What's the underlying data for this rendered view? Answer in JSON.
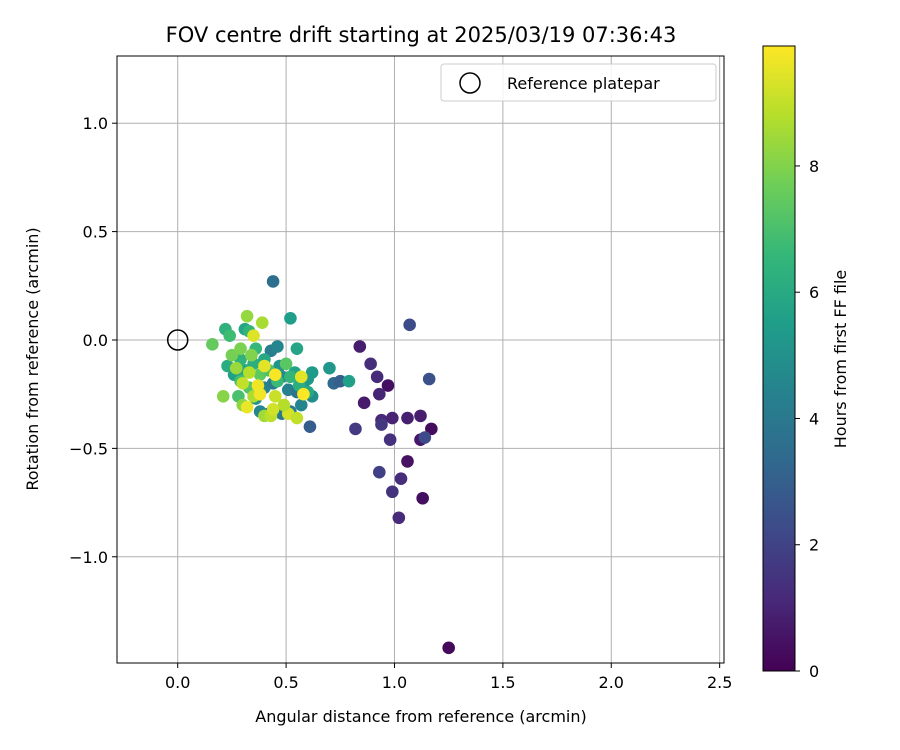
{
  "chart_data": {
    "type": "scatter",
    "title": "FOV centre drift starting at 2025/03/19 07:36:43",
    "xlabel": "Angular distance from reference (arcmin)",
    "ylabel": "Rotation from reference (arcmin)",
    "xlim": [
      -0.28,
      2.52
    ],
    "ylim": [
      -1.49,
      1.31
    ],
    "xticks": [
      0.0,
      0.5,
      1.0,
      1.5,
      2.0,
      2.5
    ],
    "xtick_labels": [
      "0.0",
      "0.5",
      "1.0",
      "1.5",
      "2.0",
      "2.5"
    ],
    "yticks": [
      1.0,
      0.5,
      0.0,
      -0.5,
      -1.0
    ],
    "ytick_labels": [
      "1.0",
      "0.5",
      "0.0",
      "−0.5",
      "−1.0"
    ],
    "grid": true,
    "legend": {
      "placement": "top-right",
      "entries": [
        "Reference platepar"
      ]
    },
    "reference_point": {
      "name": "Reference platepar",
      "x": 0.0,
      "y": 0.0,
      "marker": "open-circle"
    },
    "colorbar": {
      "label": "Hours from first FF file",
      "min": 0,
      "max": 9.9,
      "ticks": [
        0,
        2,
        4,
        6,
        8
      ],
      "tick_labels": [
        "0",
        "2",
        "4",
        "6",
        "8"
      ],
      "colormap": "viridis",
      "stops": [
        "#440154",
        "#482878",
        "#3e4989",
        "#31688e",
        "#26828e",
        "#1f9e89",
        "#35b779",
        "#6ece58",
        "#b5de2b",
        "#fde725"
      ]
    },
    "points": [
      {
        "x": 1.25,
        "y": -1.42,
        "h": 0.2
      },
      {
        "x": 1.13,
        "y": -0.73,
        "h": 0.4
      },
      {
        "x": 1.17,
        "y": -0.41,
        "h": 0.3
      },
      {
        "x": 1.12,
        "y": -0.46,
        "h": 0.6
      },
      {
        "x": 1.06,
        "y": -0.56,
        "h": 0.5
      },
      {
        "x": 0.97,
        "y": -0.21,
        "h": 0.4
      },
      {
        "x": 0.84,
        "y": -0.03,
        "h": 0.8
      },
      {
        "x": 0.86,
        "y": -0.29,
        "h": 0.7
      },
      {
        "x": 0.93,
        "y": -0.25,
        "h": 1.0
      },
      {
        "x": 0.92,
        "y": -0.17,
        "h": 1.2
      },
      {
        "x": 0.89,
        "y": -0.11,
        "h": 1.3
      },
      {
        "x": 0.94,
        "y": -0.37,
        "h": 1.1
      },
      {
        "x": 0.99,
        "y": -0.36,
        "h": 1.0
      },
      {
        "x": 1.06,
        "y": -0.36,
        "h": 0.9
      },
      {
        "x": 1.12,
        "y": -0.35,
        "h": 0.8
      },
      {
        "x": 0.98,
        "y": -0.46,
        "h": 1.4
      },
      {
        "x": 0.94,
        "y": -0.39,
        "h": 1.6
      },
      {
        "x": 0.82,
        "y": -0.41,
        "h": 1.7
      },
      {
        "x": 0.93,
        "y": -0.61,
        "h": 1.9
      },
      {
        "x": 0.99,
        "y": -0.7,
        "h": 1.5
      },
      {
        "x": 1.03,
        "y": -0.64,
        "h": 1.3
      },
      {
        "x": 1.02,
        "y": -0.82,
        "h": 1.2
      },
      {
        "x": 1.14,
        "y": -0.45,
        "h": 2.2
      },
      {
        "x": 1.16,
        "y": -0.18,
        "h": 2.5
      },
      {
        "x": 1.07,
        "y": 0.07,
        "h": 2.3
      },
      {
        "x": 0.61,
        "y": -0.4,
        "h": 2.9
      },
      {
        "x": 0.72,
        "y": -0.2,
        "h": 3.3
      },
      {
        "x": 0.75,
        "y": -0.19,
        "h": 3.0
      },
      {
        "x": 0.44,
        "y": 0.27,
        "h": 3.6
      },
      {
        "x": 0.79,
        "y": -0.19,
        "h": 5.6
      },
      {
        "x": 0.7,
        "y": -0.13,
        "h": 5.2
      },
      {
        "x": 0.52,
        "y": 0.1,
        "h": 5.5
      },
      {
        "x": 0.55,
        "y": -0.04,
        "h": 5.8
      },
      {
        "x": 0.62,
        "y": -0.15,
        "h": 5.4
      },
      {
        "x": 0.62,
        "y": -0.26,
        "h": 4.8
      },
      {
        "x": 0.57,
        "y": -0.3,
        "h": 4.5
      },
      {
        "x": 0.52,
        "y": -0.33,
        "h": 4.2
      },
      {
        "x": 0.48,
        "y": -0.34,
        "h": 4.0
      },
      {
        "x": 0.42,
        "y": -0.34,
        "h": 3.8
      },
      {
        "x": 0.38,
        "y": -0.33,
        "h": 4.6
      },
      {
        "x": 0.36,
        "y": -0.27,
        "h": 5.0
      },
      {
        "x": 0.4,
        "y": -0.22,
        "h": 4.4
      },
      {
        "x": 0.44,
        "y": -0.2,
        "h": 4.1
      },
      {
        "x": 0.48,
        "y": -0.17,
        "h": 4.7
      },
      {
        "x": 0.51,
        "y": -0.23,
        "h": 4.3
      },
      {
        "x": 0.55,
        "y": -0.24,
        "h": 3.9
      },
      {
        "x": 0.58,
        "y": -0.2,
        "h": 4.9
      },
      {
        "x": 0.6,
        "y": -0.18,
        "h": 5.3
      },
      {
        "x": 0.54,
        "y": -0.15,
        "h": 5.7
      },
      {
        "x": 0.47,
        "y": -0.12,
        "h": 5.1
      },
      {
        "x": 0.43,
        "y": -0.05,
        "h": 4.2
      },
      {
        "x": 0.46,
        "y": -0.03,
        "h": 4.5
      },
      {
        "x": 0.4,
        "y": -0.09,
        "h": 5.9
      },
      {
        "x": 0.35,
        "y": -0.11,
        "h": 6.2
      },
      {
        "x": 0.31,
        "y": -0.14,
        "h": 6.0
      },
      {
        "x": 0.29,
        "y": -0.09,
        "h": 6.4
      },
      {
        "x": 0.26,
        "y": -0.16,
        "h": 5.6
      },
      {
        "x": 0.23,
        "y": -0.12,
        "h": 6.1
      },
      {
        "x": 0.22,
        "y": 0.05,
        "h": 6.3
      },
      {
        "x": 0.31,
        "y": 0.05,
        "h": 5.8
      },
      {
        "x": 0.33,
        "y": 0.04,
        "h": 6.5
      },
      {
        "x": 0.24,
        "y": 0.02,
        "h": 6.8
      },
      {
        "x": 0.36,
        "y": -0.04,
        "h": 6.6
      },
      {
        "x": 0.29,
        "y": -0.19,
        "h": 6.9
      },
      {
        "x": 0.33,
        "y": -0.22,
        "h": 7.2
      },
      {
        "x": 0.28,
        "y": -0.26,
        "h": 7.0
      },
      {
        "x": 0.38,
        "y": -0.16,
        "h": 7.4
      },
      {
        "x": 0.42,
        "y": -0.14,
        "h": 7.1
      },
      {
        "x": 0.46,
        "y": -0.19,
        "h": 6.7
      },
      {
        "x": 0.5,
        "y": -0.11,
        "h": 7.3
      },
      {
        "x": 0.52,
        "y": -0.17,
        "h": 6.5
      },
      {
        "x": 0.56,
        "y": -0.21,
        "h": 6.2
      },
      {
        "x": 0.6,
        "y": -0.24,
        "h": 5.9
      },
      {
        "x": 0.16,
        "y": -0.02,
        "h": 7.5
      },
      {
        "x": 0.25,
        "y": -0.07,
        "h": 7.8
      },
      {
        "x": 0.21,
        "y": -0.26,
        "h": 8.1
      },
      {
        "x": 0.32,
        "y": 0.11,
        "h": 8.3
      },
      {
        "x": 0.39,
        "y": 0.08,
        "h": 8.6
      },
      {
        "x": 0.27,
        "y": -0.13,
        "h": 8.4
      },
      {
        "x": 0.3,
        "y": -0.3,
        "h": 8.2
      },
      {
        "x": 0.35,
        "y": -0.26,
        "h": 8.7
      },
      {
        "x": 0.4,
        "y": -0.35,
        "h": 8.5
      },
      {
        "x": 0.43,
        "y": -0.35,
        "h": 8.9
      },
      {
        "x": 0.34,
        "y": -0.07,
        "h": 8.0
      },
      {
        "x": 0.29,
        "y": -0.04,
        "h": 7.9
      },
      {
        "x": 0.45,
        "y": -0.26,
        "h": 9.1
      },
      {
        "x": 0.51,
        "y": -0.34,
        "h": 9.3
      },
      {
        "x": 0.55,
        "y": -0.36,
        "h": 9.0
      },
      {
        "x": 0.49,
        "y": -0.3,
        "h": 8.8
      },
      {
        "x": 0.35,
        "y": 0.02,
        "h": 9.4
      },
      {
        "x": 0.32,
        "y": -0.31,
        "h": 9.6
      },
      {
        "x": 0.37,
        "y": -0.21,
        "h": 9.7
      },
      {
        "x": 0.45,
        "y": -0.16,
        "h": 9.8
      },
      {
        "x": 0.57,
        "y": -0.17,
        "h": 9.5
      },
      {
        "x": 0.58,
        "y": -0.25,
        "h": 9.9
      },
      {
        "x": 0.44,
        "y": -0.32,
        "h": 9.2
      },
      {
        "x": 0.4,
        "y": -0.12,
        "h": 9.5
      },
      {
        "x": 0.38,
        "y": -0.25,
        "h": 9.7
      },
      {
        "x": 0.3,
        "y": -0.2,
        "h": 9.0
      },
      {
        "x": 0.33,
        "y": -0.15,
        "h": 8.8
      }
    ]
  }
}
